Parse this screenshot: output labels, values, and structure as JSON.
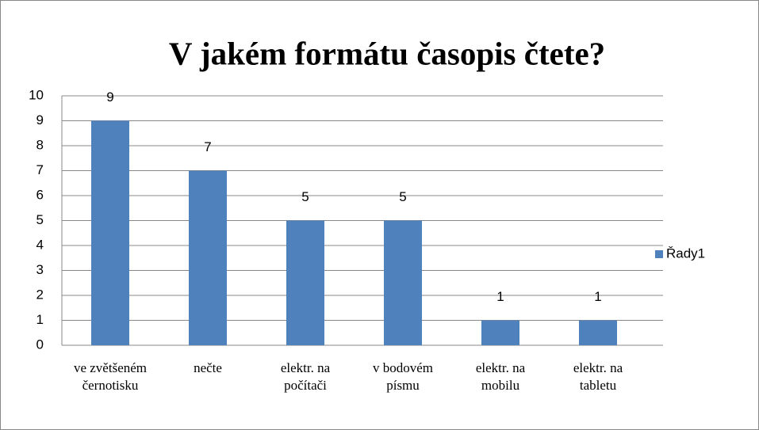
{
  "chart_data": {
    "type": "bar",
    "title": "V jakém formátu časopis čtete?",
    "categories": [
      "ve zvětšeném černotisku",
      "nečte",
      "elektr. na počítači",
      "v bodovém písmu",
      "elektr. na mobilu",
      "elektr. na tabletu"
    ],
    "series": [
      {
        "name": "Řady1",
        "color": "#4f81bd",
        "values": [
          9,
          7,
          5,
          5,
          1,
          1
        ]
      }
    ],
    "ylim": [
      0,
      10
    ],
    "yticks": [
      0,
      1,
      2,
      3,
      4,
      5,
      6,
      7,
      8,
      9,
      10
    ],
    "grid": true,
    "legend": "right"
  }
}
